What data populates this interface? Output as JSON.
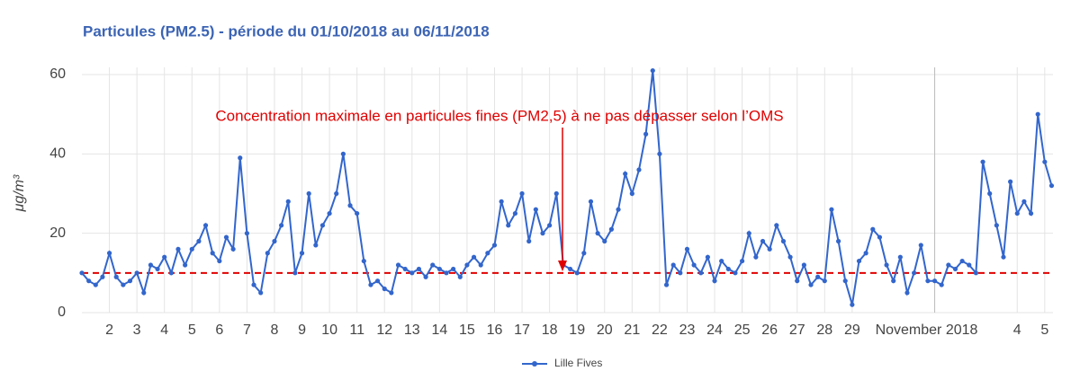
{
  "chart_data": {
    "type": "line",
    "title": "Particules (PM2.5) - période du 01/10/2018 au 06/11/2018",
    "y_label": "μg/m³",
    "annotation": "Concentration maximale en particules fines (PM2,5) à ne pas dépasser selon l’OMS",
    "reference_line": {
      "value": 10,
      "color": "#e00000"
    },
    "xlim": [
      1,
      36.3
    ],
    "ylim": [
      0,
      60
    ],
    "yticks": [
      0,
      20,
      40,
      60
    ],
    "xticks": [
      2,
      3,
      4,
      5,
      6,
      7,
      8,
      9,
      10,
      11,
      12,
      13,
      14,
      15,
      16,
      17,
      18,
      19,
      20,
      21,
      22,
      23,
      24,
      25,
      26,
      27,
      28,
      29,
      {
        "value": 32,
        "label": "November 2018"
      },
      {
        "value": 35,
        "label": "4"
      },
      {
        "value": 36,
        "label": "5"
      }
    ],
    "grid": true,
    "legend": "bottom",
    "x": [
      1,
      1.25,
      1.5,
      1.75,
      2,
      2.25,
      2.5,
      2.75,
      3,
      3.25,
      3.5,
      3.75,
      4,
      4.25,
      4.5,
      4.75,
      5,
      5.25,
      5.5,
      5.75,
      6,
      6.25,
      6.5,
      6.75,
      7,
      7.25,
      7.5,
      7.75,
      8,
      8.25,
      8.5,
      8.75,
      9,
      9.25,
      9.5,
      9.75,
      10,
      10.25,
      10.5,
      10.75,
      11,
      11.25,
      11.5,
      11.75,
      12,
      12.25,
      12.5,
      12.75,
      13,
      13.25,
      13.5,
      13.75,
      14,
      14.25,
      14.5,
      14.75,
      15,
      15.25,
      15.5,
      15.75,
      16,
      16.25,
      16.5,
      16.75,
      17,
      17.25,
      17.5,
      17.75,
      18,
      18.25,
      18.5,
      18.75,
      19,
      19.25,
      19.5,
      19.75,
      20,
      20.25,
      20.5,
      20.75,
      21,
      21.25,
      21.5,
      21.75,
      22,
      22.25,
      22.5,
      22.75,
      23,
      23.25,
      23.5,
      23.75,
      24,
      24.25,
      24.5,
      24.75,
      25,
      25.25,
      25.5,
      25.75,
      26,
      26.25,
      26.5,
      26.75,
      27,
      27.25,
      27.5,
      27.75,
      28,
      28.25,
      28.5,
      28.75,
      29,
      29.25,
      29.5,
      29.75,
      30,
      30.25,
      30.5,
      30.75,
      31,
      31.25,
      31.5,
      31.75,
      32,
      32.25,
      32.5,
      32.75,
      33,
      33.25,
      33.5,
      33.75,
      34,
      34.25,
      34.5,
      34.75,
      35,
      35.25,
      35.5,
      35.75,
      36,
      36.25
    ],
    "series": [
      {
        "name": "Lille Fives",
        "color": "#3366cc",
        "values": [
          10,
          8,
          7,
          9,
          15,
          9,
          7,
          8,
          10,
          5,
          12,
          11,
          14,
          10,
          16,
          12,
          16,
          18,
          22,
          15,
          13,
          19,
          16,
          39,
          20,
          7,
          5,
          15,
          18,
          22,
          28,
          10,
          15,
          30,
          17,
          22,
          25,
          30,
          40,
          27,
          25,
          13,
          7,
          8,
          6,
          5,
          12,
          11,
          10,
          11,
          9,
          12,
          11,
          10,
          11,
          9,
          12,
          14,
          12,
          15,
          17,
          28,
          22,
          25,
          30,
          18,
          26,
          20,
          22,
          30,
          12,
          11,
          10,
          15,
          28,
          20,
          18,
          21,
          26,
          35,
          30,
          36,
          45,
          61,
          40,
          7,
          12,
          10,
          16,
          12,
          10,
          14,
          8,
          13,
          11,
          10,
          13,
          20,
          14,
          18,
          16,
          22,
          18,
          14,
          8,
          12,
          7,
          9,
          8,
          26,
          18,
          8,
          2,
          13,
          15,
          21,
          19,
          12,
          8,
          14,
          5,
          10,
          17,
          8,
          8,
          7,
          12,
          11,
          13,
          12,
          10,
          38,
          30,
          22,
          14,
          33,
          25,
          28,
          25,
          50,
          38,
          32
        ]
      }
    ]
  }
}
